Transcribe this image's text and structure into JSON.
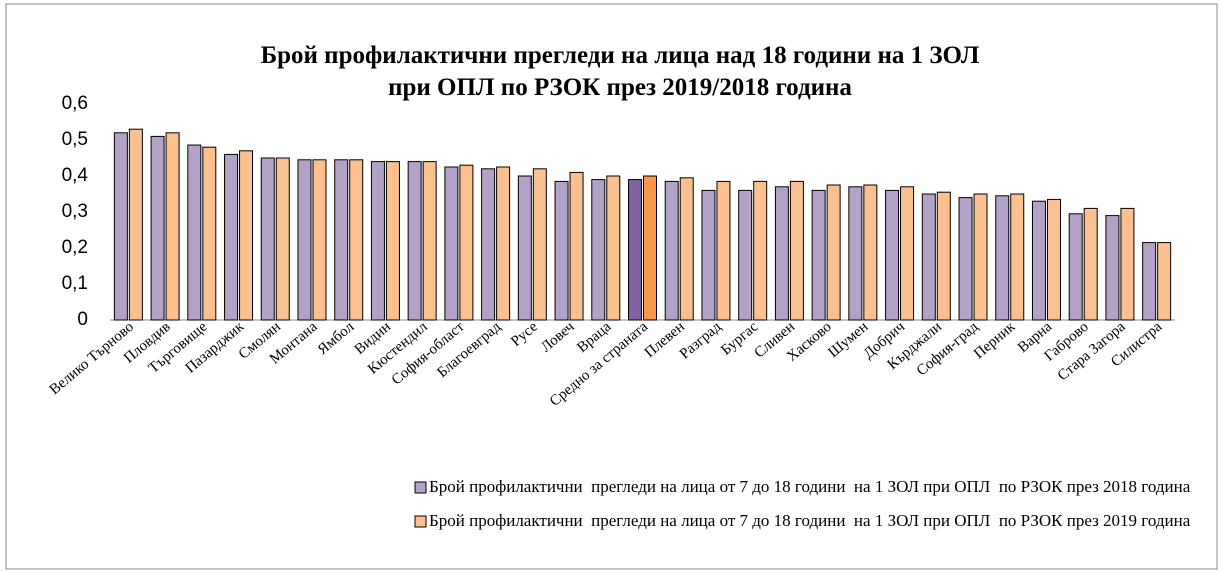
{
  "chart_data": {
    "type": "bar",
    "title": "Брой профилактични прегледи на лица над 18 години на 1 ЗОЛ при ОПЛ  по РЗОК през 2019/2018 година",
    "categories": [
      "Велико Търново",
      "Пловдив",
      "Търговище",
      "Пазарджик",
      "Смолян",
      "Монтана",
      "Ямбол",
      "Видин",
      "Кюстендил",
      "София-област",
      "Благоевград",
      "Русе",
      "Ловеч",
      "Враца",
      "Средно за страната",
      "Плевен",
      "Разград",
      "Бургас",
      "Сливен",
      "Хасково",
      "Шумен",
      "Добрич",
      "Кърджали",
      "София-град",
      "Перник",
      "Варна",
      "Габрово",
      "Стара Загора",
      "Силистра"
    ],
    "series": [
      {
        "name": "Брой профилактични  прегледи на лица от 7 до 18 години  на 1 ЗОЛ при ОПЛ  по РЗОК през 2018 година",
        "color": "#b3a2c7",
        "highlight_color": "#8064a2",
        "values": [
          0.52,
          0.51,
          0.486,
          0.46,
          0.45,
          0.445,
          0.445,
          0.44,
          0.44,
          0.425,
          0.42,
          0.4,
          0.385,
          0.39,
          0.39,
          0.385,
          0.36,
          0.36,
          0.37,
          0.36,
          0.37,
          0.36,
          0.35,
          0.34,
          0.345,
          0.33,
          0.295,
          0.29,
          0.215
        ]
      },
      {
        "name": "Брой профилактични  прегледи на лица от 7 до 18 години  на 1 ЗОЛ при ОПЛ  по РЗОК през 2019 година",
        "color": "#fac090",
        "highlight_color": "#f79646",
        "values": [
          0.53,
          0.52,
          0.48,
          0.47,
          0.45,
          0.445,
          0.445,
          0.44,
          0.44,
          0.43,
          0.425,
          0.42,
          0.41,
          0.4,
          0.4,
          0.395,
          0.385,
          0.385,
          0.385,
          0.375,
          0.375,
          0.37,
          0.355,
          0.35,
          0.35,
          0.335,
          0.31,
          0.31,
          0.215
        ]
      }
    ],
    "highlight_category": "Средно за страната",
    "ylim": [
      0,
      0.6
    ],
    "yticks": [
      {
        "value": 0,
        "label": "0"
      },
      {
        "value": 0.1,
        "label": "0,1"
      },
      {
        "value": 0.2,
        "label": "0,2"
      },
      {
        "value": 0.3,
        "label": "0,3"
      },
      {
        "value": 0.4,
        "label": "0,4"
      },
      {
        "value": 0.5,
        "label": "0,5"
      },
      {
        "value": 0.6,
        "label": "0,6"
      }
    ],
    "grid": false
  }
}
